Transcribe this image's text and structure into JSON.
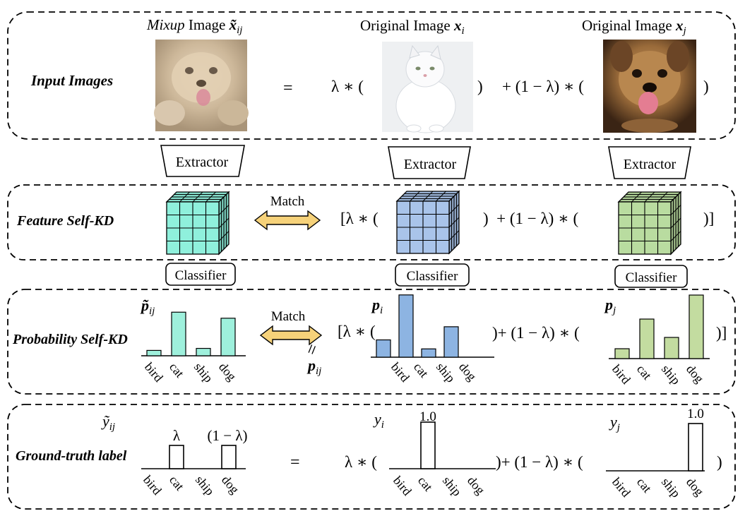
{
  "rows": {
    "input": {
      "title": "Input Images",
      "mixup_caption_italic": "Mixup",
      "mixup_caption_rest": "Image",
      "mixup_symbol": "x̃",
      "mixup_subscript": "ij",
      "orig_i_caption": "Original Image",
      "orig_i_symbol": "x",
      "orig_i_subscript": "i",
      "orig_j_caption": "Original Image",
      "orig_j_symbol": "x",
      "orig_j_subscript": "j",
      "equals": "=",
      "lambda_open": "λ ∗ (",
      "close_paren": ")",
      "plus_term": "+ (1 − λ) ∗ (",
      "close_paren_2": ")"
    },
    "extractor": {
      "label": "Extractor"
    },
    "feature": {
      "title": "Feature Self-KD",
      "match": "Match",
      "bracket_lambda": "[λ ∗ (",
      "close_plus": ")  + (1 − λ) ∗ (",
      "close_bracket": ")]"
    },
    "classifier": {
      "label": "Classifier"
    },
    "probability": {
      "title": "Probability Self-KD",
      "match": "Match",
      "mix_symbol": "p̃",
      "mix_subscript": "ij",
      "pi_symbol": "p",
      "pi_subscript": "i",
      "pj_symbol": "p",
      "pj_subscript": "j",
      "bracket_lambda": "[λ ∗ (",
      "close_plus": ")+ (1 − λ) ∗ (",
      "close_bracket": ")]",
      "equal_sign": "=",
      "pij_symbol": "p",
      "pij_subscript": "ij"
    },
    "ground_truth": {
      "title": "Ground-truth label",
      "mix_symbol": "ỹ",
      "mix_subscript": "ij",
      "yi_symbol": "y",
      "yi_subscript": "i",
      "yj_symbol": "y",
      "yj_subscript": "j",
      "lambda_label": "λ",
      "one_minus_lambda": "(1 − λ)",
      "value_label_i": "1.0",
      "value_label_j": "1.0",
      "equals": "=",
      "lambda_open": "λ ∗ (",
      "close_plus": ")+ (1 − λ) ∗ (",
      "close_paren": ")"
    }
  },
  "categories": [
    "bird",
    "cat",
    "ship",
    "dog"
  ],
  "colors": {
    "mixup_bar": "#9ef0dc",
    "pi_bar": "#8db4e2",
    "pj_bar": "#c3dca0",
    "gt_bar": "#ffffff",
    "arrow_fill": "#f6d27a",
    "cube_mix": "#8ff0dc",
    "cube_i": "#a9c4ea",
    "cube_j": "#b9dca0"
  },
  "chart_data": [
    {
      "type": "bar",
      "title": "p̃_ij",
      "categories": [
        "bird",
        "cat",
        "ship",
        "dog"
      ],
      "values": [
        0.08,
        0.65,
        0.11,
        0.56
      ],
      "ylim": [
        0,
        1
      ]
    },
    {
      "type": "bar",
      "title": "p_i",
      "categories": [
        "bird",
        "cat",
        "ship",
        "dog"
      ],
      "values": [
        0.25,
        0.9,
        0.12,
        0.44
      ],
      "ylim": [
        0,
        1
      ]
    },
    {
      "type": "bar",
      "title": "p_j",
      "categories": [
        "bird",
        "cat",
        "ship",
        "dog"
      ],
      "values": [
        0.14,
        0.56,
        0.3,
        0.9
      ],
      "ylim": [
        0,
        1
      ]
    },
    {
      "type": "bar",
      "title": "ỹ_ij",
      "categories": [
        "bird",
        "cat",
        "ship",
        "dog"
      ],
      "values": [
        0,
        0.5,
        0,
        0.5
      ],
      "ylim": [
        0,
        1
      ]
    },
    {
      "type": "bar",
      "title": "y_i",
      "categories": [
        "bird",
        "cat",
        "ship",
        "dog"
      ],
      "values": [
        0,
        1.0,
        0,
        0
      ],
      "ylim": [
        0,
        1
      ]
    },
    {
      "type": "bar",
      "title": "y_j",
      "categories": [
        "bird",
        "cat",
        "ship",
        "dog"
      ],
      "values": [
        0,
        0,
        0,
        1.0
      ],
      "ylim": [
        0,
        1
      ]
    }
  ]
}
